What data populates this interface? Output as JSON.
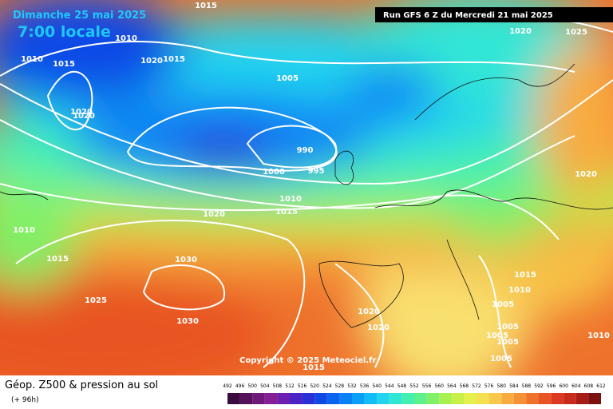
{
  "header": {
    "date": "Dimanche 25 mai 2025",
    "time": "7:00 locale",
    "run": "Run GFS 6 Z du Mercredi 21 mai 2025"
  },
  "copyright": "Copyright © 2025 Meteociel.fr",
  "footer": {
    "title": "Géop. Z500 & pression au sol",
    "lead": "(+ 96h)"
  },
  "isobar_labels": [
    "1015",
    "1010",
    "1010",
    "1015",
    "1020",
    "1020",
    "1015",
    "1020",
    "1005",
    "1020",
    "1025",
    "1000",
    "990",
    "995",
    "1010",
    "1015",
    "1020",
    "1010",
    "1015",
    "1030",
    "1025",
    "1030",
    "1015",
    "1010",
    "1005",
    "1005",
    "1020",
    "1020",
    "1005",
    "1005",
    "1005",
    "1010",
    "1020",
    "1015"
  ],
  "colorbar": {
    "ticks": [
      "492",
      "496",
      "500",
      "504",
      "508",
      "512",
      "516",
      "520",
      "524",
      "528",
      "532",
      "536",
      "540",
      "544",
      "548",
      "552",
      "556",
      "560",
      "564",
      "568",
      "572",
      "576",
      "580",
      "584",
      "588",
      "592",
      "596",
      "600",
      "604",
      "608",
      "612"
    ],
    "colors": [
      "#3b0b3f",
      "#55115a",
      "#6e1a78",
      "#841f96",
      "#6c1fb0",
      "#4b23c4",
      "#2a2fd6",
      "#1048e6",
      "#0a64f0",
      "#0a82f5",
      "#0aa0f8",
      "#12bcf6",
      "#22d4ee",
      "#32e6d6",
      "#44f0b0",
      "#5ef08a",
      "#80f066",
      "#a6f050",
      "#c8f048",
      "#e6f04c",
      "#f4e050",
      "#f8c84a",
      "#f8ac40",
      "#f49036",
      "#ee722c",
      "#e85424",
      "#dc3a20",
      "#c82a1c",
      "#a81c18",
      "#7a1010"
    ]
  }
}
